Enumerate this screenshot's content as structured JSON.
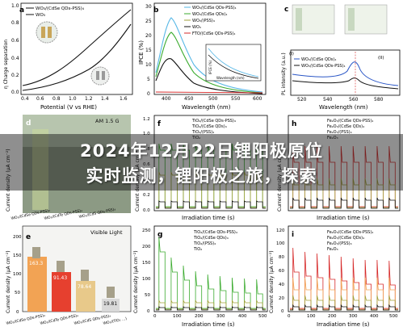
{
  "banner": {
    "line1": "2024年12月22日锂阳极原位",
    "line2": "实时监测，锂阳极之旅，探索"
  },
  "panel_a": {
    "letter": "a",
    "ylabel": "η Charge separation",
    "xlabel": "Potential (V vs RHE)",
    "legend": [
      "WO₃/(CdSe QDs-PSS)₄",
      "WO₃"
    ],
    "xticks": [
      "0.4",
      "0.6",
      "0.8",
      "1.0",
      "1.2",
      "1.4",
      "1.6"
    ],
    "yticks": [
      "0.0",
      "0.2",
      "0.4",
      "0.6",
      "0.8",
      "1.0"
    ]
  },
  "panel_b": {
    "letter": "b",
    "ylabel": "IPCE (%)",
    "xlabel": "Wavelength (nm)",
    "legend": [
      "WO₃/(CdSe QDs-PSS)₄",
      "WO₃/(CdSe QDs)₄",
      "WO₃/(PSS)₄",
      "WO₃",
      "FTO/(CdSe QDs-PSS)₄"
    ],
    "xticks": [
      "400",
      "450",
      "500",
      "550",
      "600"
    ],
    "yticks": [
      "0",
      "5",
      "10",
      "15",
      "20",
      "25",
      "30"
    ],
    "inset_ylabel": "IPCE (%)",
    "inset_xlabel": "Wavelength (nm)"
  },
  "panel_c": {
    "letter": "c",
    "ylabel": "PL intensity (a.u.)",
    "xlabel": "Wavelength (nm)",
    "legend": [
      "WO₃/(CdSe QDs)₄",
      "WO₃/(CdSe QDs-PSS)₄"
    ],
    "xticks": [
      "520",
      "540",
      "560",
      "580"
    ],
    "labels": [
      "(I)",
      "(II)"
    ]
  },
  "panel_d": {
    "letter": "d",
    "title": "AM 1.5 G",
    "ylabel": "Current density (μA cm⁻²)",
    "samples": [
      "WO₃/(CdSe QDs-PSS)₄",
      "WO₃/(CdTe QDs-PSS)₄",
      "WO₃/(CdS QDs-PSS)₄"
    ]
  },
  "panel_e": {
    "letter": "e",
    "title": "Visible Light",
    "ylabel": "Current density (μA cm⁻²)",
    "values": [
      "163.3",
      "91.43",
      "78.64",
      "19.81"
    ],
    "samples": [
      "WO₃/(CdSe QDs-PSS)₄",
      "WO₃/(CdTe QDs-PSS)₄",
      "WO₃/(CdS QDs-PSS)₄",
      "WO₃/(TiO₂ ...)"
    ],
    "yticks": [
      "0",
      "50",
      "100",
      "150",
      "200"
    ]
  },
  "panel_f": {
    "letter": "f",
    "ylabel": "Current density (μA cm⁻²)",
    "xlabel": "Irradiation time (s)",
    "legend": [
      "TiO₂/(CdSe QDs-PSS)₄",
      "TiO₂/(CdSe QDs)₄",
      "TiO₂/(PSS)₄",
      "TiO₂"
    ],
    "yticks": [
      "0.0",
      "0.2",
      "0.4",
      "0.6",
      "0.8",
      "1.0",
      "1.2"
    ]
  },
  "panel_g": {
    "letter": "g",
    "ylabel": "Current density (μA cm⁻²)",
    "xlabel": "Irradiation time (s)",
    "legend": [
      "TiO₂/(CdSe QDs-PSS)₄",
      "TiO₂/(CdSe QDs)₄",
      "TiO₂/(PSS)₄",
      "TiO₂"
    ],
    "yticks": [
      "0",
      "50",
      "100",
      "150",
      "200",
      "250"
    ],
    "xticks": [
      "0",
      "100",
      "200",
      "300",
      "400",
      "500"
    ]
  },
  "panel_h": {
    "letter": "h",
    "ylabel": "Current density (μA cm⁻²)",
    "xlabel": "Irradiation time (s)",
    "legend": [
      "Fe₂O₃/(CdSe QDs-PSS)₄",
      "Fe₂O₃/(CdSe QDs)₄",
      "Fe₂O₃/(PSS)₄",
      "Fe₂O₃"
    ]
  },
  "panel_i": {
    "letter": "i",
    "ylabel": "Current density (μA cm⁻²)",
    "xlabel": "Irradiation time (s)",
    "legend": [
      "Fe₂O₃/(CdSe QDs-PSS)₄",
      "Fe₂O₃/(CdSe QDs)₄",
      "Fe₂O₃/(PSS)₄",
      "Fe₂O₃"
    ],
    "yticks": [
      "0",
      "20",
      "40",
      "60",
      "80",
      "100",
      "120"
    ],
    "xticks": [
      "0",
      "100",
      "200",
      "300",
      "400",
      "500"
    ]
  },
  "colors": {
    "green": "#3bab2f",
    "black": "#111111",
    "red": "#d62828",
    "blue": "#2a56c6",
    "lightblue": "#56b7e6",
    "olive": "#a2a13a",
    "orange": "#f2a354"
  }
}
